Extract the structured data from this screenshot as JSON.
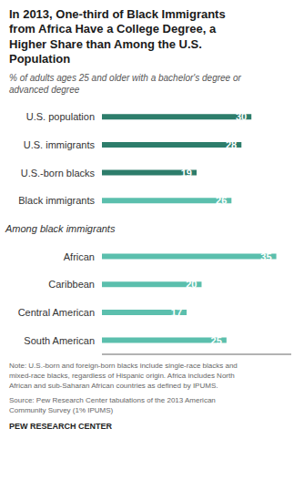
{
  "chart_data": {
    "type": "bar",
    "orientation": "horizontal",
    "title": "In 2013, One-third of Black Immigrants\nfrom Africa Have a College Degree, a\nHigher Share than Among the U.S.\nPopulation",
    "subtitle": "% of adults ages 25 and older with a bachelor's degree or\nadvanced degree",
    "categories": [
      "U.S. population",
      "U.S. immigrants",
      "U.S.-born blacks",
      "Black immigrants",
      "African",
      "Caribbean",
      "Central American",
      "South American"
    ],
    "values": [
      30,
      28,
      19,
      26,
      35,
      20,
      17,
      25
    ],
    "colors": [
      "#2d7d6b",
      "#2d7d6b",
      "#2d7d6b",
      "#5bbfad",
      "#5bbfad",
      "#5bbfad",
      "#5bbfad",
      "#5bbfad"
    ],
    "xlim": [
      0,
      38
    ],
    "data_labels": true,
    "tick_labels": "y",
    "grid": false,
    "annotations": [
      {
        "text": "Among black immigrants",
        "category": "African"
      }
    ],
    "note": "Note: U.S.-born and foreign-born blacks include single-race blacks and\nmixed-race blacks, regardless of Hispanic origin. Africa includes North\nAfrican and sub-Saharan African countries as defined by IPUMS.",
    "source": "Source: Pew Research Center tabulations of the 2013 American\nCommunity Survey (1% IPUMS)",
    "footer": "PEW RESEARCH CENTER"
  }
}
